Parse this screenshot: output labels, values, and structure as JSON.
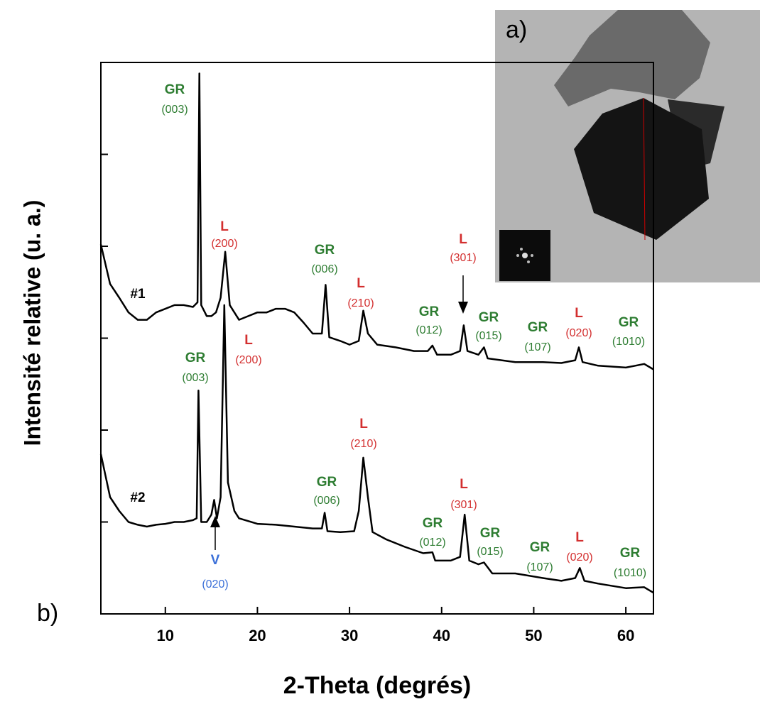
{
  "chart_data": {
    "type": "line",
    "xlabel": "2-Theta (degrés)",
    "ylabel": "Intensité relative (u. a.)",
    "panel_labels": [
      "a)",
      "b)"
    ],
    "xlim": [
      3,
      63
    ],
    "xticks": [
      10,
      20,
      30,
      40,
      50,
      60
    ],
    "ylim": [
      0,
      6
    ],
    "yticks": [
      1,
      2,
      3,
      4,
      5
    ],
    "series": [
      {
        "name": "#1",
        "color": "#000000",
        "x": [
          3,
          4,
          5,
          6,
          7,
          8,
          9,
          10,
          11,
          12,
          13,
          13.5,
          13.7,
          13.9,
          14.5,
          15,
          15.5,
          16,
          16.5,
          17,
          18,
          19,
          20,
          21,
          22,
          23,
          24,
          25,
          26,
          27,
          27.4,
          27.8,
          29,
          30,
          31,
          31.5,
          32,
          33,
          35,
          37,
          38.5,
          39,
          39.5,
          41,
          42,
          42.4,
          42.8,
          44,
          44.6,
          45,
          48,
          51,
          53,
          54.5,
          54.9,
          55.3,
          57,
          60,
          62,
          63
        ],
        "values": [
          4.02,
          3.59,
          3.44,
          3.28,
          3.2,
          3.2,
          3.28,
          3.32,
          3.36,
          3.36,
          3.34,
          3.39,
          5.88,
          3.36,
          3.24,
          3.24,
          3.28,
          3.44,
          3.94,
          3.36,
          3.2,
          3.24,
          3.28,
          3.28,
          3.32,
          3.32,
          3.28,
          3.17,
          3.05,
          3.05,
          3.58,
          3.01,
          2.97,
          2.93,
          2.97,
          3.3,
          3.05,
          2.93,
          2.9,
          2.86,
          2.86,
          2.92,
          2.82,
          2.82,
          2.86,
          3.14,
          2.86,
          2.82,
          2.9,
          2.78,
          2.74,
          2.74,
          2.73,
          2.76,
          2.9,
          2.74,
          2.7,
          2.68,
          2.72,
          2.66
        ]
      },
      {
        "name": "#2",
        "color": "#000000",
        "x": [
          3,
          4,
          5,
          6,
          7,
          8,
          9,
          10,
          11,
          12,
          13,
          13.4,
          13.6,
          13.9,
          14.5,
          15,
          15.3,
          15.6,
          16,
          16.4,
          16.8,
          17.5,
          18,
          20,
          22,
          24,
          26,
          27,
          27.3,
          27.6,
          29,
          30.5,
          31,
          31.5,
          32,
          32.5,
          34,
          36,
          38,
          39,
          39.3,
          41,
          42,
          42.5,
          43,
          44,
          44.6,
          45.5,
          48,
          51,
          53,
          54.5,
          55,
          55.5,
          57,
          60,
          62,
          63
        ],
        "values": [
          1.74,
          1.27,
          1.12,
          1.0,
          0.97,
          0.95,
          0.97,
          0.98,
          1.0,
          1.0,
          1.02,
          1.04,
          2.43,
          1.0,
          1.0,
          1.08,
          1.24,
          1.04,
          1.27,
          3.36,
          1.43,
          1.12,
          1.04,
          0.98,
          0.97,
          0.95,
          0.93,
          0.93,
          1.1,
          0.9,
          0.89,
          0.9,
          1.12,
          1.7,
          1.27,
          0.89,
          0.81,
          0.73,
          0.66,
          0.67,
          0.58,
          0.58,
          0.62,
          1.08,
          0.58,
          0.54,
          0.56,
          0.44,
          0.44,
          0.39,
          0.36,
          0.39,
          0.5,
          0.36,
          0.33,
          0.28,
          0.29,
          0.23
        ]
      }
    ],
    "annotations": [
      {
        "label": "GR",
        "hkl": "(003)",
        "color": "#2e7d32"
      },
      {
        "label": "L",
        "hkl": "(200)",
        "color": "#d32f2f"
      },
      {
        "label": "GR",
        "hkl": "(006)",
        "color": "#2e7d32"
      },
      {
        "label": "L",
        "hkl": "(210)",
        "color": "#d32f2f"
      },
      {
        "label": "GR",
        "hkl": "(012)",
        "color": "#2e7d32"
      },
      {
        "label": "L",
        "hkl": "(301)",
        "color": "#d32f2f"
      },
      {
        "label": "GR",
        "hkl": "(015)",
        "color": "#2e7d32"
      },
      {
        "label": "GR",
        "hkl": "(107)",
        "color": "#2e7d32"
      },
      {
        "label": "L",
        "hkl": "(020)",
        "color": "#d32f2f"
      },
      {
        "label": "GR",
        "hkl": "(1010)",
        "color": "#2e7d32"
      },
      {
        "label": "GR",
        "hkl": "(003)",
        "color": "#2e7d32"
      },
      {
        "label": "L",
        "hkl": "(200)",
        "color": "#d32f2f"
      },
      {
        "label": "L",
        "hkl": "(210)",
        "color": "#d32f2f"
      },
      {
        "label": "GR",
        "hkl": "(006)",
        "color": "#2e7d32"
      },
      {
        "label": "GR",
        "hkl": "(012)",
        "color": "#2e7d32"
      },
      {
        "label": "L",
        "hkl": "(301)",
        "color": "#d32f2f"
      },
      {
        "label": "GR",
        "hkl": "(015)",
        "color": "#2e7d32"
      },
      {
        "label": "GR",
        "hkl": "(107)",
        "color": "#2e7d32"
      },
      {
        "label": "L",
        "hkl": "(020)",
        "color": "#d32f2f"
      },
      {
        "label": "GR",
        "hkl": "(1010)",
        "color": "#2e7d32"
      },
      {
        "label": "V",
        "hkl": "(020)",
        "color": "#3a6fd8"
      }
    ]
  }
}
